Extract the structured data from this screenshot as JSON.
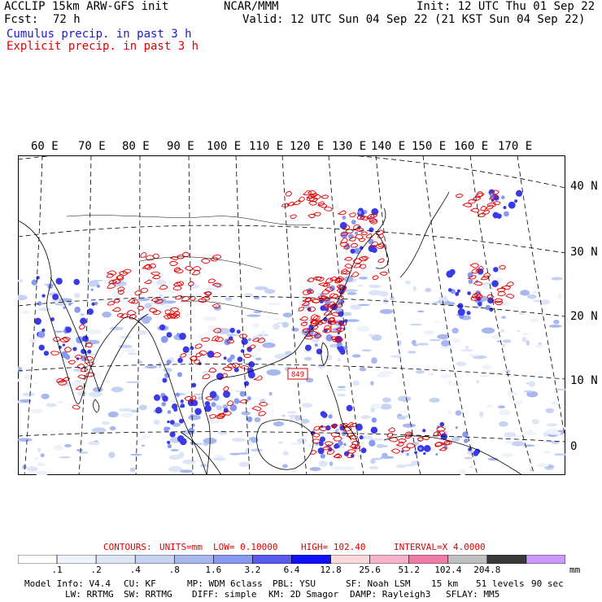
{
  "header": {
    "model": "ACCLIP 15km ARW-GFS init",
    "org": "NCAR/MMM",
    "init": "Init: 12 UTC Thu 01 Sep 22",
    "fcst_label": "Fcst:",
    "fcst_value": "72 h",
    "valid": "Valid: 12 UTC Sun 04 Sep 22 (21 KST Sun 04 Sep 22)",
    "legend_cumulus": "Cumulus precip. in past 3 h",
    "legend_explicit": "Explicit precip. in past 3 h"
  },
  "map": {
    "lon_labels": [
      "60 E",
      "70 E",
      "80 E",
      "90 E",
      "100 E",
      "110 E",
      "120 E",
      "130 E",
      "140 E",
      "150 E",
      "160 E",
      "170 E"
    ],
    "lat_labels": [
      "40 N",
      "30 N",
      "20 N",
      "10 N",
      "0"
    ],
    "storm_labels": [
      "849"
    ],
    "colors": {
      "cumulus": "#1a1acc",
      "explicit": "#e00000",
      "coast": "#000000"
    }
  },
  "contours_line": {
    "label": "CONTOURS:",
    "units": "UNITS=mm",
    "low": "LOW= 0.10000",
    "high": "HIGH= 102.40",
    "interval": "INTERVAL=X 4.0000"
  },
  "colorbar": {
    "labels": [
      ".1",
      ".2",
      ".4",
      ".8",
      "1.6",
      "3.2",
      "6.4",
      "12.8",
      "25.6",
      "51.2",
      "102.4",
      "204.8"
    ],
    "unit": "mm",
    "colors": [
      "#ffffff",
      "#eef2fb",
      "#dde5f7",
      "#c5d2f2",
      "#a8b8ee",
      "#8899f0",
      "#5a5aee",
      "#1010ff",
      "#fadada",
      "#f7b3c8",
      "#f07aa8",
      "#c0c0c0",
      "#3a3a3a",
      "#cc99ff"
    ]
  },
  "footer": {
    "line1": [
      "Model Info: V4.4",
      "CU: KF",
      "MP: WDM 6class",
      "PBL: YSU",
      "SF: Noah LSM",
      "15 km",
      "51 levels",
      "90 sec"
    ],
    "line2": [
      "LW: RRTMG",
      "SW: RRTMG",
      "DIFF: simple",
      "KM: 2D Smagor",
      "DAMP: Rayleigh3",
      "SFLAY: MM5"
    ]
  }
}
